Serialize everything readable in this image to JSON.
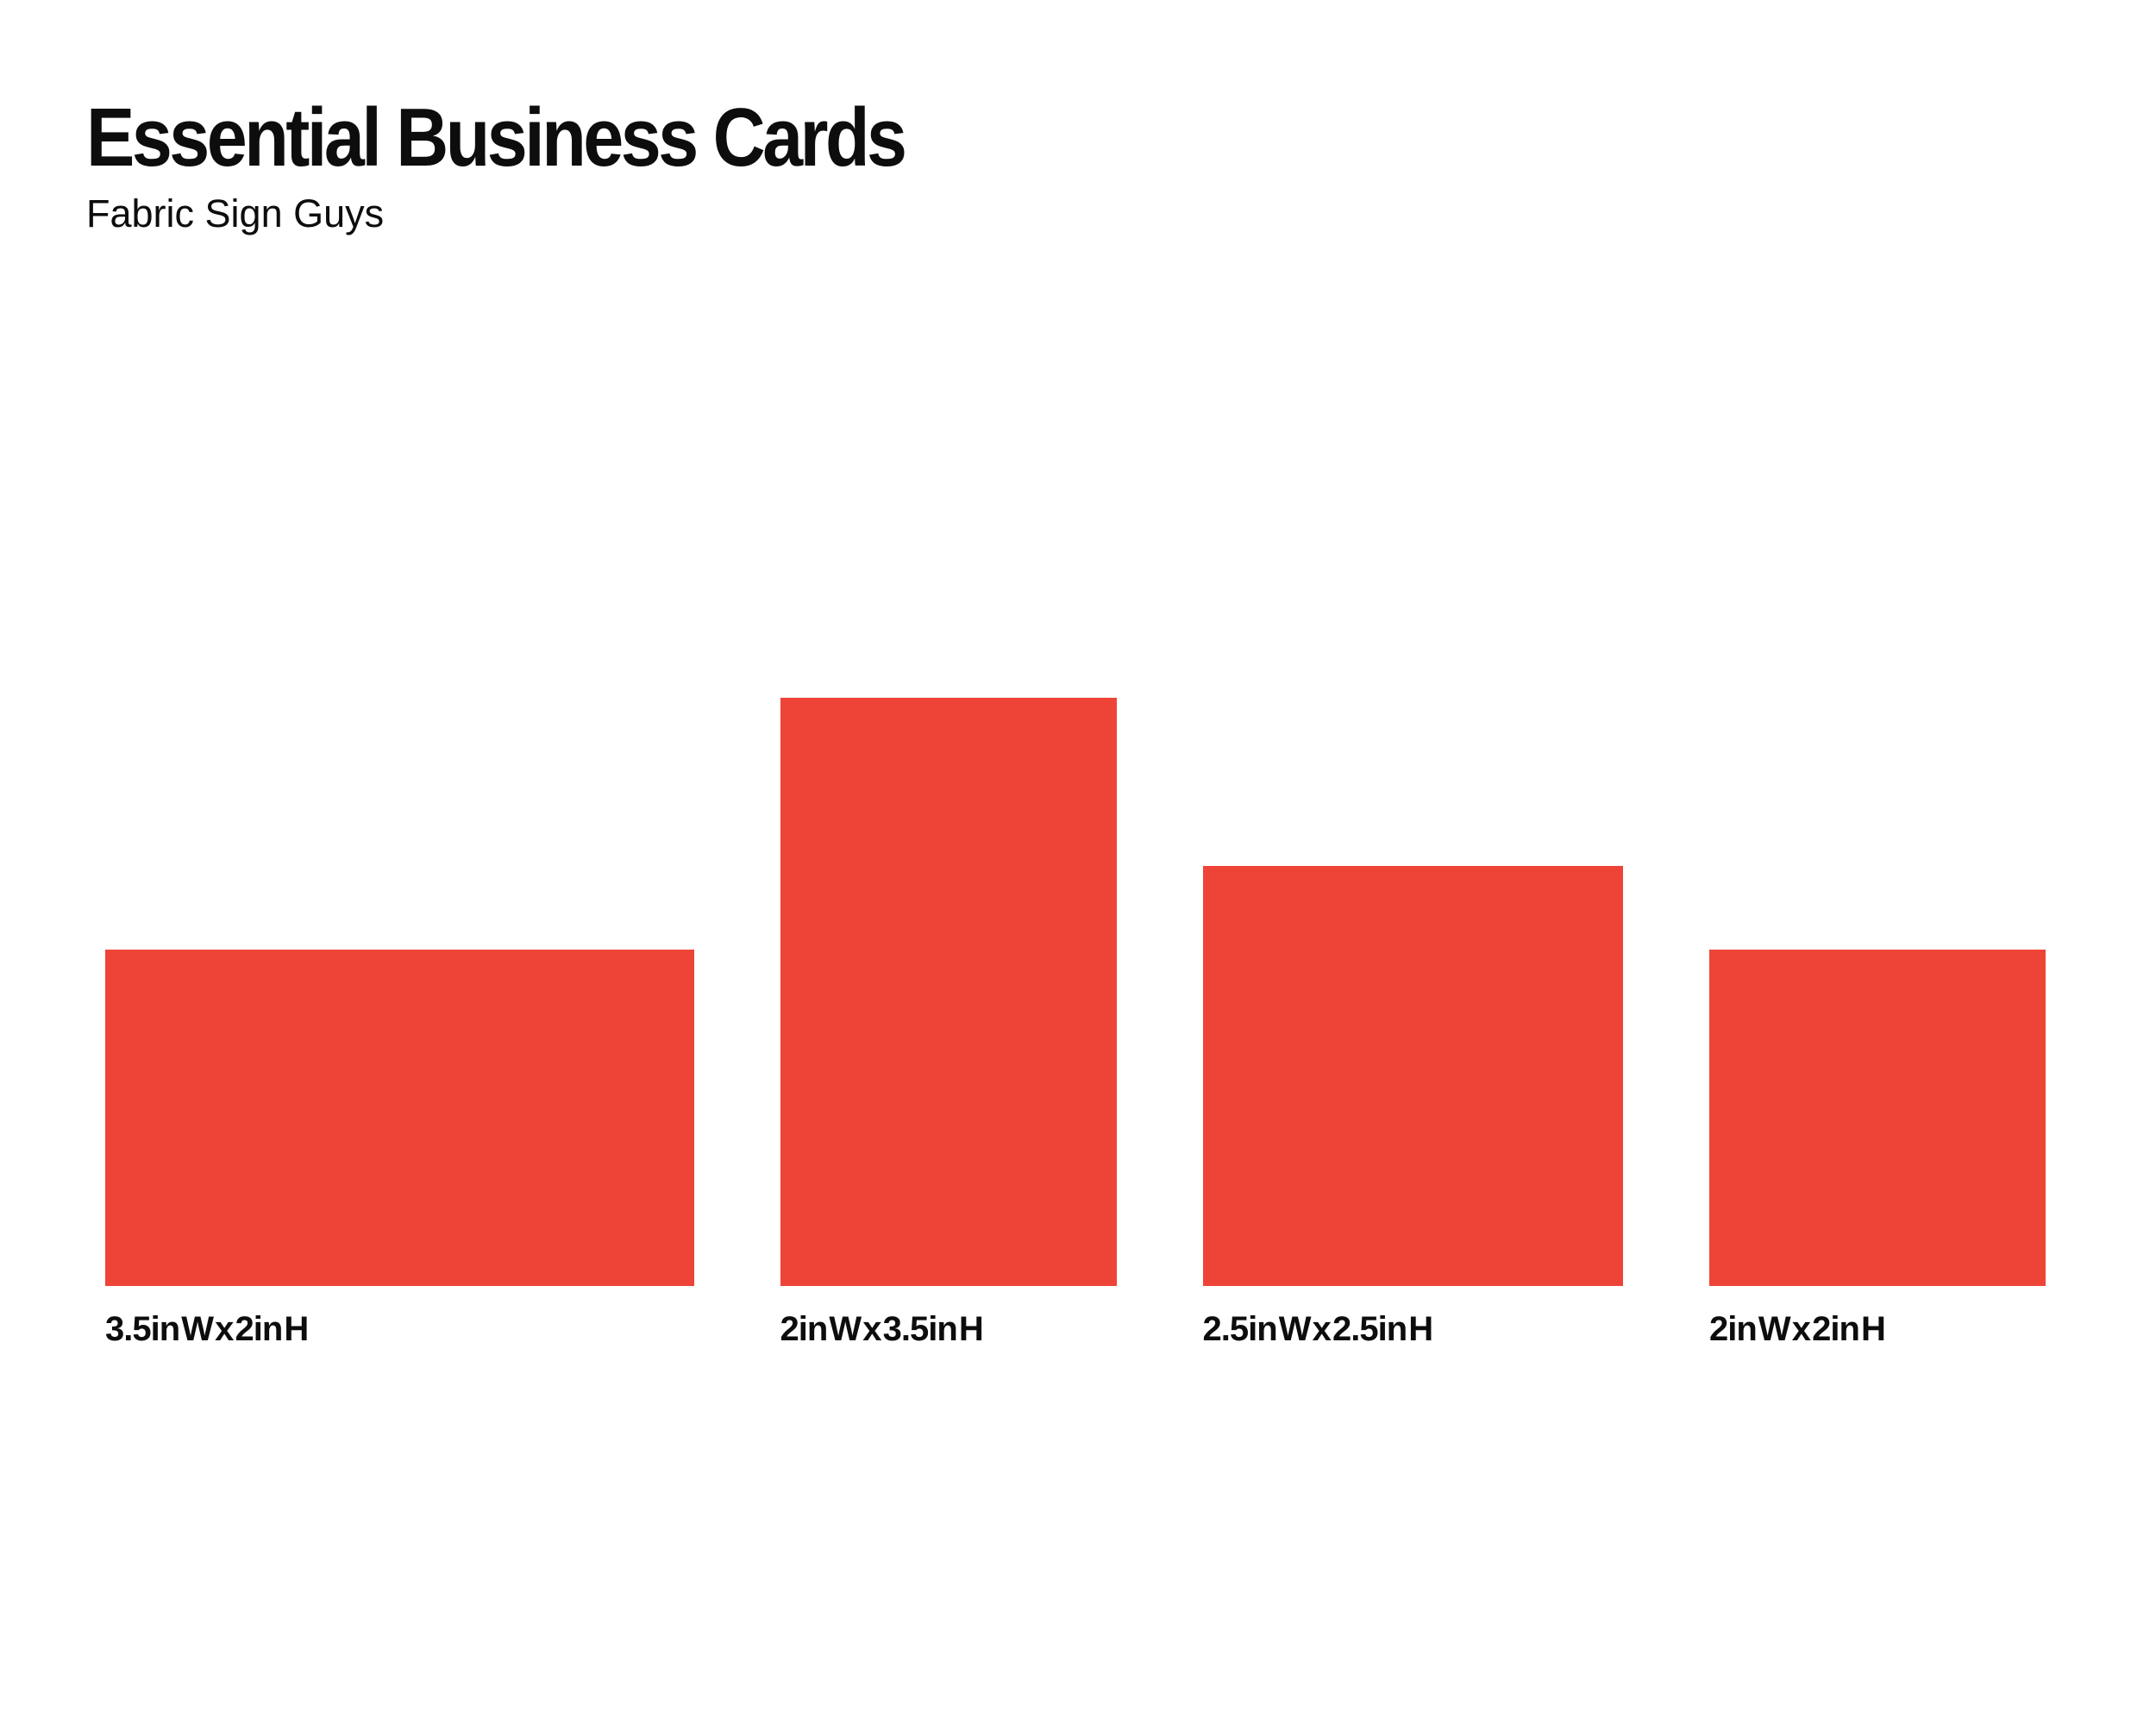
{
  "header": {
    "title": "Essential Business Cards",
    "subtitle": "Fabric Sign Guys"
  },
  "colors": {
    "accent_red": "#EE4437",
    "text": "#0D0D0D",
    "background": "#FFFFFF"
  },
  "scale_note": "rectangles drawn to scale, bottom-aligned",
  "cards": [
    {
      "label": "3.5in W x 2in H",
      "width_in": 3.5,
      "height_in": 2
    },
    {
      "label": "2in W x 3.5in H",
      "width_in": 2,
      "height_in": 3.5
    },
    {
      "label": "2.5in W x 2.5in H",
      "width_in": 2.5,
      "height_in": 2.5
    },
    {
      "label": "2in W x 2in H",
      "width_in": 2,
      "height_in": 2
    }
  ]
}
